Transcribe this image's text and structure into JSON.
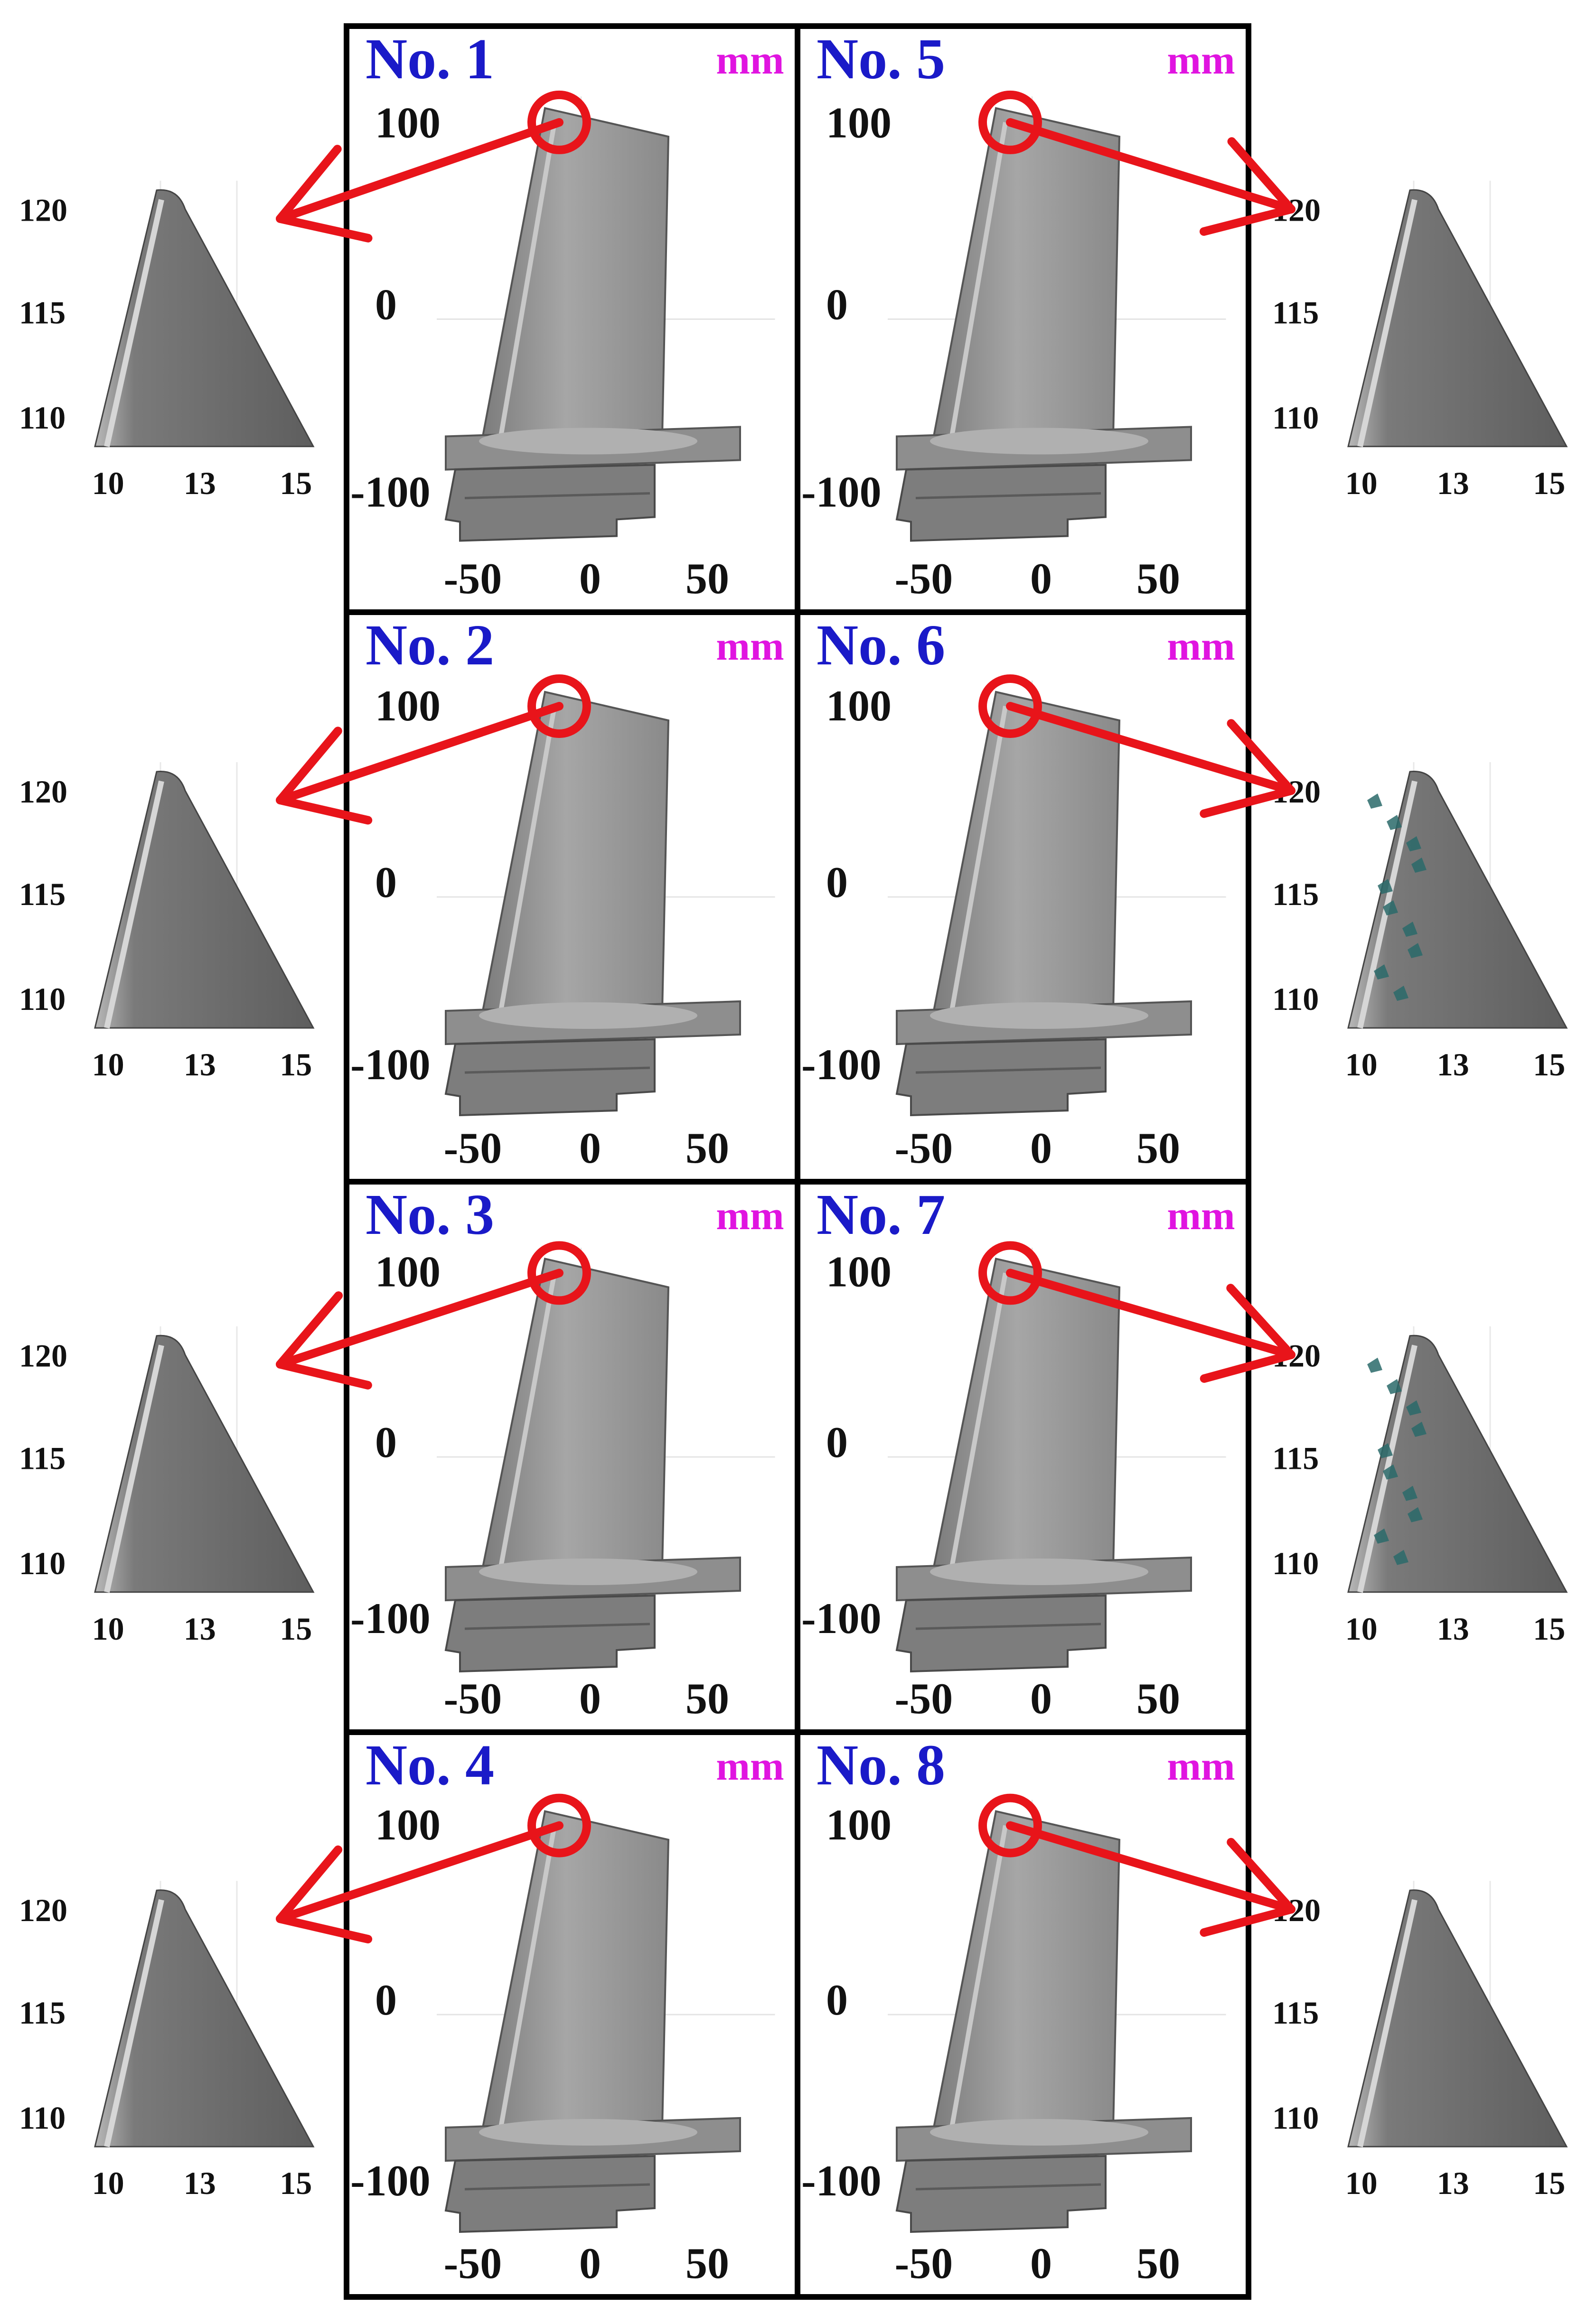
{
  "unit_label": "mm",
  "colors": {
    "panel_title": "#1a1ac8",
    "unit": "#e014e0",
    "callout": "#e8141a",
    "blade_fill": "#9a9a9a",
    "zoom_fill": "#6e6e6e",
    "frame": "#000000",
    "defect": "#2a6a6a"
  },
  "main_axes": {
    "y_ticks": [
      "100",
      "0",
      "-100"
    ],
    "x_ticks": [
      "-50",
      "0",
      "50"
    ]
  },
  "zoom_axes": {
    "y_ticks": [
      "120",
      "115",
      "110"
    ],
    "x_ticks": [
      "10",
      "13",
      "15"
    ]
  },
  "panels": [
    {
      "title": "No. 1",
      "zoom_side": "left",
      "tip_defects": false
    },
    {
      "title": "No. 2",
      "zoom_side": "left",
      "tip_defects": false
    },
    {
      "title": "No. 3",
      "zoom_side": "left",
      "tip_defects": false
    },
    {
      "title": "No. 4",
      "zoom_side": "left",
      "tip_defects": false
    },
    {
      "title": "No. 5",
      "zoom_side": "right",
      "tip_defects": false
    },
    {
      "title": "No. 6",
      "zoom_side": "right",
      "tip_defects": true
    },
    {
      "title": "No. 7",
      "zoom_side": "right",
      "tip_defects": true
    },
    {
      "title": "No. 8",
      "zoom_side": "right",
      "tip_defects": false
    }
  ]
}
